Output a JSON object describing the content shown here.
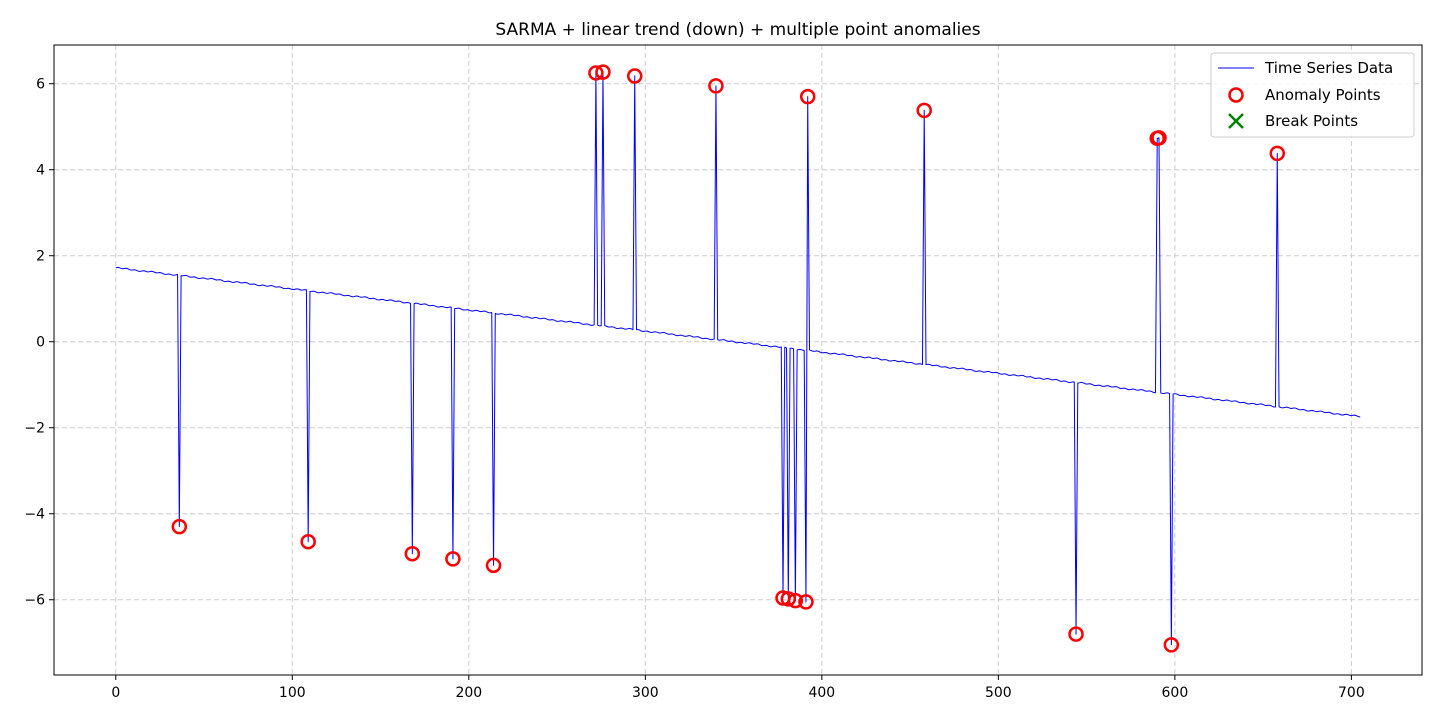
{
  "chart_data": {
    "type": "line",
    "title": "SARMA + linear trend (down) + multiple point anomalies",
    "xlabel": "",
    "ylabel": "",
    "xlim": [
      -35,
      740
    ],
    "ylim": [
      -7.75,
      6.9
    ],
    "xticks": [
      0,
      100,
      200,
      300,
      400,
      500,
      600,
      700
    ],
    "yticks": [
      -6,
      -4,
      -2,
      0,
      2,
      4,
      6
    ],
    "grid": true,
    "legend_position": "top-right",
    "trend": {
      "x_start": 0,
      "x_end": 705,
      "y_start": 1.72,
      "y_end": -1.74
    },
    "series": [
      {
        "name": "Time Series Data",
        "kind": "line",
        "color": "#0000ff"
      },
      {
        "name": "Anomaly Points",
        "kind": "marker-circle",
        "color": "#ff0000",
        "points": [
          [
            36,
            -4.3
          ],
          [
            109,
            -4.65
          ],
          [
            168,
            -4.93
          ],
          [
            191,
            -5.05
          ],
          [
            214,
            -5.2
          ],
          [
            272,
            6.25
          ],
          [
            276,
            6.27
          ],
          [
            294,
            6.18
          ],
          [
            340,
            5.95
          ],
          [
            378,
            -5.96
          ],
          [
            381,
            -5.98
          ],
          [
            385,
            -6.02
          ],
          [
            391,
            -6.05
          ],
          [
            392,
            5.7
          ],
          [
            458,
            5.38
          ],
          [
            544,
            -6.8
          ],
          [
            590,
            4.73
          ],
          [
            591,
            4.74
          ],
          [
            598,
            -7.05
          ],
          [
            658,
            4.38
          ]
        ]
      },
      {
        "name": "Break Points",
        "kind": "marker-x",
        "color": "#008000",
        "points": []
      }
    ]
  }
}
